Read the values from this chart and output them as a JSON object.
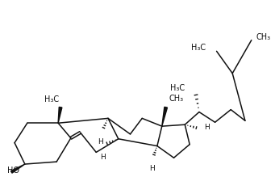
{
  "bg_color": "#ffffff",
  "line_color": "#111111",
  "line_width": 1.1,
  "text_color": "#111111",
  "font_size": 7.0,
  "xlim": [
    0,
    10
  ],
  "ylim": [
    0,
    7
  ]
}
